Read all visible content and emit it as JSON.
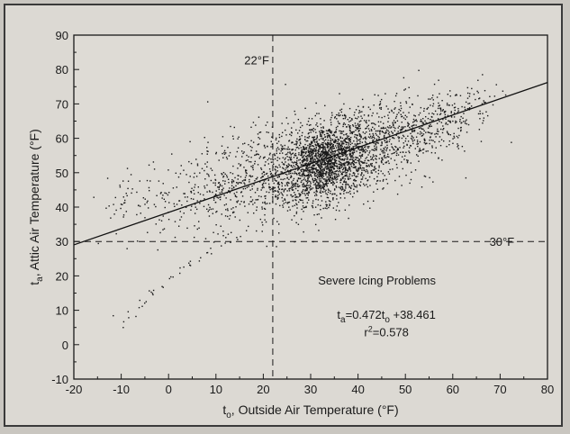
{
  "chart_data": {
    "type": "scatter",
    "title": "",
    "xlabel": {
      "main": "t",
      "sub": "o",
      "rest": ", Outside Air Temperature (°F)"
    },
    "ylabel": {
      "main": "t",
      "sub": "a",
      "rest": ", Attic Air Temperature (°F)"
    },
    "xlim": [
      -20,
      80
    ],
    "ylim": [
      -10,
      90
    ],
    "xticks": [
      -20,
      -10,
      0,
      10,
      20,
      30,
      40,
      50,
      60,
      70,
      80
    ],
    "yticks": [
      -10,
      0,
      10,
      20,
      30,
      40,
      50,
      60,
      70,
      80,
      90
    ],
    "grid": false,
    "regression": {
      "slope": 0.472,
      "intercept": 38.461,
      "r2": 0.578
    },
    "reference_lines": [
      {
        "axis": "x",
        "value": 22,
        "label": "22°F"
      },
      {
        "axis": "y",
        "value": 30,
        "label": "30°F"
      }
    ],
    "annotations": {
      "region": "Severe Icing Problems",
      "equation": {
        "a": "t",
        "a_sub": "a",
        "b": "=0.472t",
        "b_sub": "o",
        "c": " +38.461"
      },
      "r2": {
        "a": "r",
        "sup": "2",
        "b": "=0.578"
      }
    },
    "clusters": [
      {
        "cx": 33,
        "cy": 53,
        "sx": 4.5,
        "sy": 5.5,
        "n": 1400
      },
      {
        "cx": 40,
        "cy": 57,
        "sx": 8,
        "sy": 7,
        "n": 700
      },
      {
        "cx": 22,
        "cy": 50,
        "sx": 7,
        "sy": 7,
        "n": 550
      },
      {
        "cx": 52,
        "cy": 62,
        "sx": 6,
        "sy": 5,
        "n": 300
      },
      {
        "cx": 8,
        "cy": 45,
        "sx": 7,
        "sy": 6,
        "n": 220
      },
      {
        "cx": 62,
        "cy": 68,
        "sx": 4,
        "sy": 4,
        "n": 100
      },
      {
        "cx": -6,
        "cy": 43,
        "sx": 4,
        "sy": 4,
        "n": 60
      }
    ],
    "tail": [
      [
        -10,
        7
      ],
      [
        -8,
        9
      ],
      [
        -6,
        11
      ],
      [
        -4,
        14
      ],
      [
        -3,
        15
      ],
      [
        -2,
        17
      ],
      [
        0,
        20
      ],
      [
        2,
        22
      ],
      [
        4,
        24
      ],
      [
        6,
        25
      ],
      [
        8,
        27
      ],
      [
        10,
        29
      ],
      [
        12,
        30
      ],
      [
        14,
        31
      ]
    ]
  }
}
